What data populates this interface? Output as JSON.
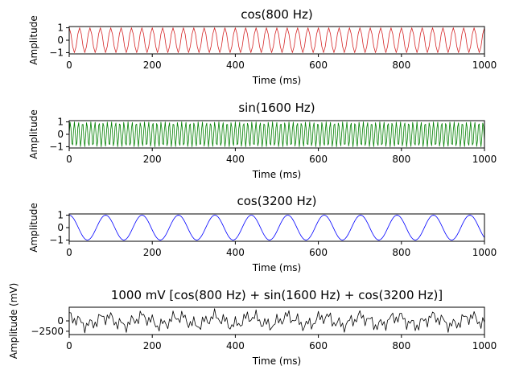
{
  "chart_data": [
    {
      "type": "line",
      "title": "cos(800 Hz)",
      "xlabel": "Time (ms)",
      "ylabel": "Amplitude",
      "xlim": [
        0,
        1000
      ],
      "ylim": [
        -1.1,
        1.1
      ],
      "xticks": [
        0,
        200,
        400,
        600,
        800,
        1000
      ],
      "yticks": [
        -1,
        0,
        1
      ],
      "ytick_labels": [
        "−1",
        "0",
        "1"
      ],
      "grid": false,
      "color": "#d62728",
      "signal": {
        "kind": "cos",
        "cycles": 40,
        "amplitude": 1
      },
      "samples": 240
    },
    {
      "type": "line",
      "title": "sin(1600 Hz)",
      "xlabel": "Time (ms)",
      "ylabel": "Amplitude",
      "xlim": [
        0,
        1000
      ],
      "ylim": [
        -1.1,
        1.1
      ],
      "xticks": [
        0,
        200,
        400,
        600,
        800,
        1000
      ],
      "yticks": [
        -1,
        0,
        1
      ],
      "ytick_labels": [
        "−1",
        "0",
        "1"
      ],
      "grid": false,
      "color": "#008000",
      "signal": {
        "kind": "sin",
        "cycles": 100.6,
        "amplitude": 1
      },
      "samples": 480
    },
    {
      "type": "line",
      "title": "cos(3200 Hz)",
      "xlabel": "Time (ms)",
      "ylabel": "Amplitude",
      "xlim": [
        0,
        1000
      ],
      "ylim": [
        -1.1,
        1.1
      ],
      "xticks": [
        0,
        200,
        400,
        600,
        800,
        1000
      ],
      "yticks": [
        -1,
        0,
        1
      ],
      "ytick_labels": [
        "−1",
        "0",
        "1"
      ],
      "grid": false,
      "color": "#0000ff",
      "signal": {
        "kind": "cos",
        "cycles": 11.4,
        "amplitude": 1
      },
      "samples": 400
    },
    {
      "type": "line",
      "title": "1000 mV [cos(800 Hz) + sin(1600 Hz) + cos(3200 Hz)]",
      "xlabel": "Time (ms)",
      "ylabel": "Amplitude (mV)",
      "xlim": [
        0,
        1000
      ],
      "ylim": [
        -3300,
        3300
      ],
      "xticks": [
        0,
        200,
        400,
        600,
        800,
        1000
      ],
      "yticks": [
        -2500,
        0
      ],
      "ytick_labels": [
        "−2500",
        "0"
      ],
      "grid": false,
      "color": "#000000",
      "signal": {
        "kind": "sum",
        "amplitude": 1000
      },
      "samples": 240
    }
  ]
}
